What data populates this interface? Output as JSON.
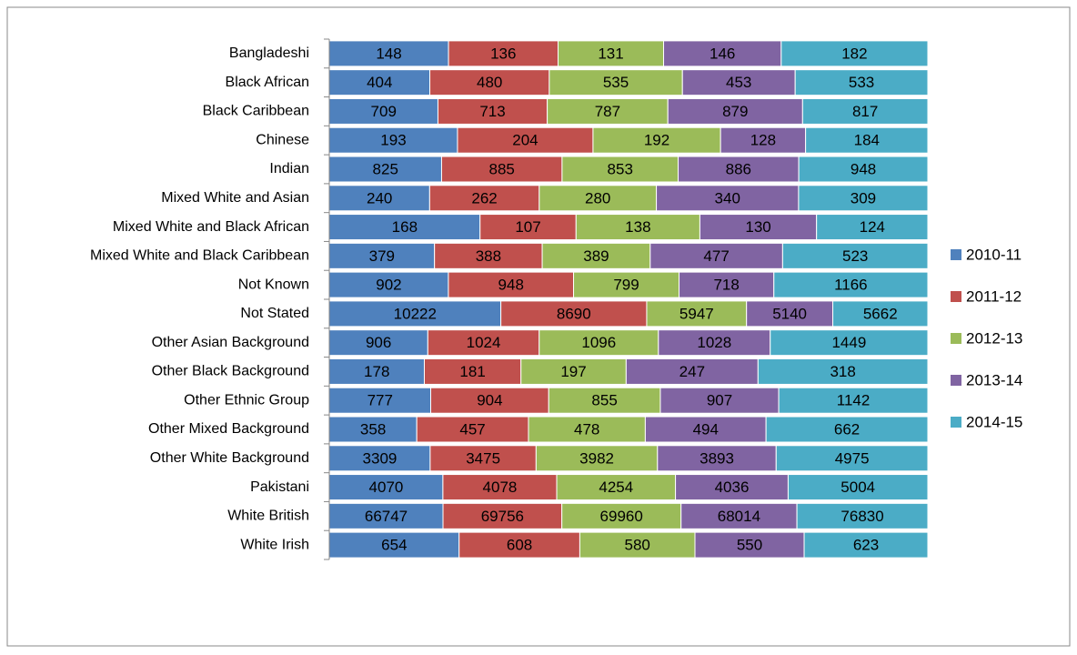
{
  "chart_data": {
    "type": "bar",
    "orientation": "horizontal",
    "stacked": "percent",
    "legend": "right",
    "categories": [
      "Bangladeshi",
      "Black African",
      "Black Caribbean",
      "Chinese",
      "Indian",
      "Mixed White and Asian",
      "Mixed White and Black African",
      "Mixed White and Black Caribbean",
      "Not Known",
      "Not Stated",
      "Other Asian Background",
      "Other Black Background",
      "Other Ethnic Group",
      "Other Mixed Background",
      "Other White Background",
      "Pakistani",
      "White British",
      "White Irish"
    ],
    "series": [
      {
        "name": "2010-11",
        "color": "#4f81bd",
        "values": [
          148,
          404,
          709,
          193,
          825,
          240,
          168,
          379,
          902,
          10222,
          906,
          178,
          777,
          358,
          3309,
          4070,
          66747,
          654
        ]
      },
      {
        "name": "2011-12",
        "color": "#c0504d",
        "values": [
          136,
          480,
          713,
          204,
          885,
          262,
          107,
          388,
          948,
          8690,
          1024,
          181,
          904,
          457,
          3475,
          4078,
          69756,
          608
        ]
      },
      {
        "name": "2012-13",
        "color": "#9bbb59",
        "values": [
          131,
          535,
          787,
          192,
          853,
          280,
          138,
          389,
          799,
          5947,
          1096,
          197,
          855,
          478,
          3982,
          4254,
          69960,
          580
        ]
      },
      {
        "name": "2013-14",
        "color": "#8064a2",
        "values": [
          146,
          453,
          879,
          128,
          886,
          340,
          130,
          477,
          718,
          5140,
          1028,
          247,
          907,
          494,
          3893,
          4036,
          68014,
          550
        ]
      },
      {
        "name": "2014-15",
        "color": "#4bacc6",
        "values": [
          182,
          533,
          817,
          184,
          948,
          309,
          124,
          523,
          1166,
          5662,
          1449,
          318,
          1142,
          662,
          4975,
          5004,
          76830,
          623
        ]
      }
    ]
  }
}
